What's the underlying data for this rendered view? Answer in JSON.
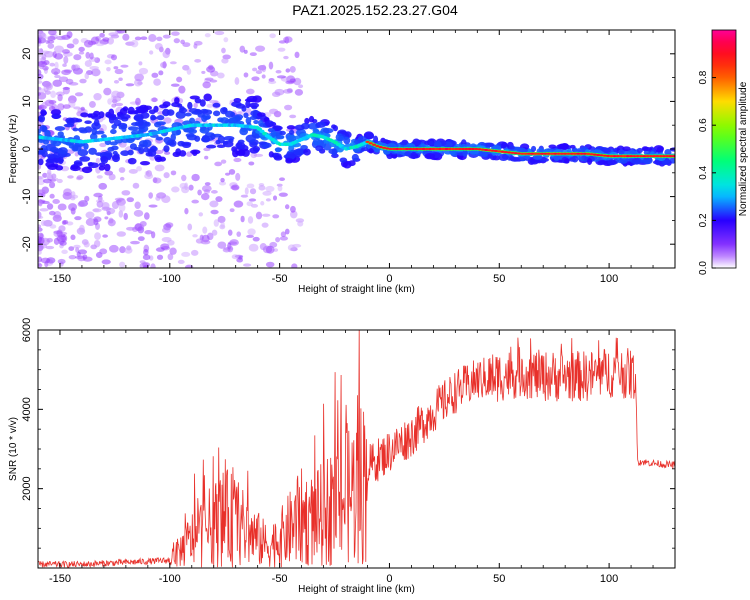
{
  "title": "PAZ1.2025.152.23.27.G04",
  "chart_data": [
    {
      "type": "heatmap",
      "xlabel": "Height of straight line (km)",
      "ylabel": "Frequency (Hz)",
      "xlim": [
        -160,
        130
      ],
      "ylim": [
        -25,
        25
      ],
      "xticks": [
        -150,
        -100,
        -50,
        0,
        50,
        100
      ],
      "yticks": [
        -20,
        -10,
        0,
        10,
        20
      ],
      "colorbar": {
        "label": "Normalized spectral amplitude",
        "range": [
          0,
          1
        ],
        "ticks": [
          "0.0",
          "0.2",
          "0.4",
          "0.6",
          "0.8"
        ]
      },
      "ridge": {
        "x": [
          -160,
          -150,
          -140,
          -130,
          -120,
          -110,
          -100,
          -90,
          -80,
          -70,
          -60,
          -55,
          -50,
          -45,
          -40,
          -35,
          -30,
          -25,
          -20,
          -15,
          -10,
          -5,
          0,
          10,
          20,
          30,
          40,
          50,
          60,
          70,
          80,
          90,
          100,
          110,
          120,
          130
        ],
        "y": [
          2.5,
          2.0,
          1.5,
          2.0,
          2.5,
          3.0,
          4.0,
          5.0,
          5.0,
          5.0,
          4.5,
          2.5,
          1.0,
          1.0,
          2.0,
          3.0,
          2.5,
          1.5,
          0.0,
          0.5,
          1.5,
          0.5,
          0.0,
          0.0,
          0.0,
          0.0,
          0.0,
          -0.5,
          -1.0,
          -1.0,
          -1.0,
          -1.0,
          -1.5,
          -1.5,
          -1.5,
          -1.5
        ]
      }
    },
    {
      "type": "line",
      "xlabel": "Height of straight line (km)",
      "ylabel": "SNR (10 * v/v)",
      "xlim": [
        -160,
        130
      ],
      "ylim": [
        0,
        6000
      ],
      "xticks": [
        -150,
        -100,
        -50,
        0,
        50,
        100
      ],
      "yticks": [
        2000,
        4000,
        6000
      ],
      "color": "#e8302a",
      "series": [
        {
          "x": [
            -160,
            -140,
            -120,
            -100,
            -90,
            -80,
            -75,
            -70,
            -65,
            -60,
            -55,
            -50,
            -45,
            -40,
            -35,
            -30,
            -25,
            -20,
            -15,
            -10,
            -5,
            0,
            10,
            20,
            30,
            40,
            50,
            60,
            70,
            80,
            90,
            100,
            105,
            110,
            112,
            113,
            120,
            130
          ],
          "values": [
            100,
            100,
            150,
            200,
            800,
            1200,
            1400,
            1300,
            1000,
            800,
            600,
            800,
            1100,
            1400,
            1300,
            1500,
            1800,
            2000,
            2200,
            2600,
            2800,
            3000,
            3400,
            4000,
            4500,
            4800,
            4900,
            5000,
            4900,
            4900,
            4900,
            5000,
            5000,
            4950,
            4900,
            2700,
            2650,
            2600
          ]
        }
      ]
    }
  ]
}
